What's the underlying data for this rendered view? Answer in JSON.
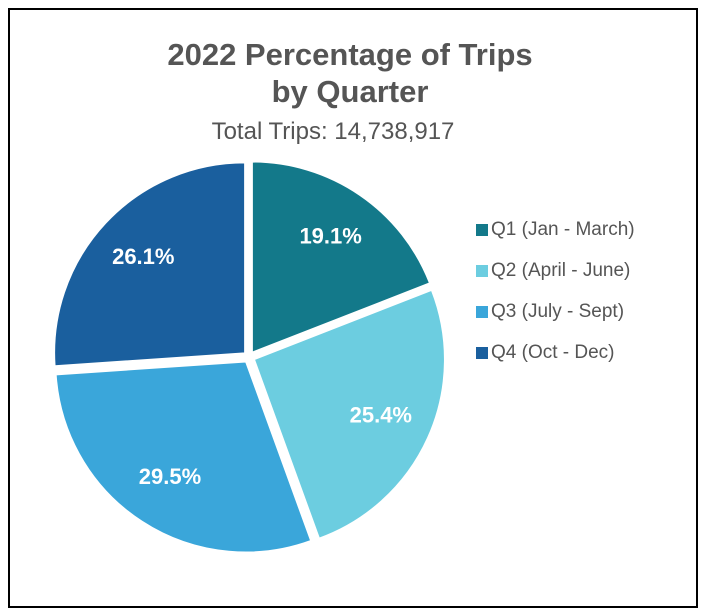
{
  "chart_data": {
    "type": "pie",
    "title": "2022 Percentage of Trips by Quarter",
    "subtitle": "Total Trips: 14,738,917",
    "categories": [
      "Q1 (Jan - March)",
      "Q2 (April - June)",
      "Q3 (July - Sept)",
      "Q4 (Oct - Dec)"
    ],
    "values": [
      19.1,
      25.4,
      29.5,
      26.1
    ],
    "value_labels": [
      "19.1%",
      "25.4%",
      "29.5%",
      "26.1%"
    ],
    "colors": [
      "#13798a",
      "#6ccde0",
      "#3aa6da",
      "#1a5f9e"
    ],
    "legend": "right"
  }
}
